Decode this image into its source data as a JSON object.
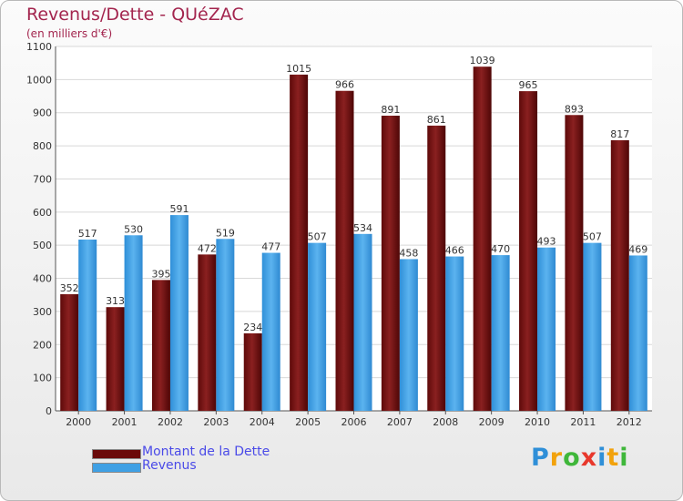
{
  "chart_data": {
    "type": "bar",
    "title": "Revenus/Dette - QUéZAC",
    "subtitle": "(en milliers d'€)",
    "categories": [
      "2000",
      "2001",
      "2002",
      "2003",
      "2004",
      "2005",
      "2006",
      "2007",
      "2008",
      "2009",
      "2010",
      "2011",
      "2012"
    ],
    "series": [
      {
        "name": "Montant de la Dette",
        "color": "#7a1010",
        "values": [
          352,
          313,
          395,
          472,
          234,
          1015,
          966,
          891,
          861,
          1039,
          965,
          893,
          817
        ]
      },
      {
        "name": "Revenus",
        "color": "#3fa0e4",
        "values": [
          517,
          530,
          591,
          519,
          477,
          507,
          534,
          458,
          466,
          470,
          493,
          507,
          469
        ]
      }
    ],
    "ylim": [
      0,
      1100
    ],
    "yticks": [
      0,
      100,
      200,
      300,
      400,
      500,
      600,
      700,
      800,
      900,
      1000,
      1100
    ],
    "grid": true,
    "legend": "bottom-left"
  },
  "legend": {
    "debt_label": "Montant de la Dette",
    "revenue_label": "Revenus",
    "debt_color": "#6b0a0a",
    "revenue_color": "#3fa0e4"
  },
  "logo": {
    "letters": [
      "P",
      "r",
      "o",
      "x",
      "i",
      "t",
      "i"
    ],
    "colors": [
      "#2f8fd8",
      "#f2a20c",
      "#3fb73a",
      "#e8382c",
      "#2f8fd8",
      "#f2a20c",
      "#3fb73a"
    ]
  }
}
